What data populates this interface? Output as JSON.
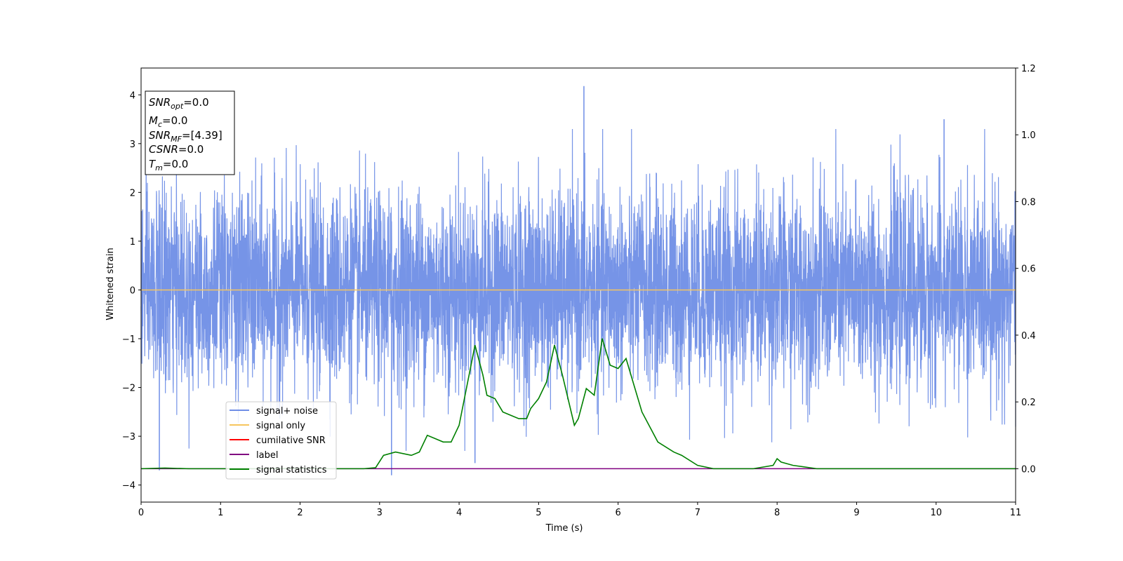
{
  "chart_data": {
    "type": "line",
    "xlabel": "Time (s)",
    "ylabel": "Whitened strain",
    "xlim": [
      0,
      11
    ],
    "ylim_left": [
      -4.35,
      4.55
    ],
    "ylim_right": [
      -0.1,
      1.2
    ],
    "x_ticks": [
      "0",
      "1",
      "2",
      "3",
      "4",
      "5",
      "6",
      "7",
      "8",
      "9",
      "10",
      "11"
    ],
    "y_ticks_left": [
      "−4",
      "−3",
      "−2",
      "−1",
      "0",
      "1",
      "2",
      "3",
      "4"
    ],
    "y_ticks_right": [
      "0.0",
      "0.2",
      "0.4",
      "0.6",
      "0.8",
      "1.0",
      "1.2"
    ],
    "legend_position": "lower-left",
    "info_box": {
      "snr_opt": {
        "main": "SNR",
        "sub": "opt",
        "value": "=0.0"
      },
      "mc": {
        "main": "M",
        "sub": "c",
        "value": "=0.0"
      },
      "snr_mf": {
        "main": "SNR",
        "sub": "MF",
        "value": "=[4.39]"
      },
      "csnr": {
        "main": "CSNR",
        "value": "=0.0"
      },
      "tm": {
        "main": "T",
        "sub": "m",
        "value": "=0.0"
      }
    },
    "series": [
      {
        "name": "signal+ noise",
        "color": "#6f8ee6",
        "axis": "left",
        "description_noise": "whitened gaussian noise, approx. range -3.8 to 4.2",
        "peaks": [
          {
            "x": 0.23,
            "y": -3.7
          },
          {
            "x": 5.57,
            "y": 4.18
          },
          {
            "x": 3.15,
            "y": -3.8
          },
          {
            "x": 10.1,
            "y": 3.5
          },
          {
            "x": 4.2,
            "y": -3.55
          }
        ]
      },
      {
        "name": "signal only",
        "color": "#f6c55e",
        "axis": "left",
        "x": [
          0,
          11
        ],
        "y": [
          0,
          0
        ]
      },
      {
        "name": "cumilative SNR",
        "color": "#ff0000",
        "axis": "right",
        "x": [],
        "y": []
      },
      {
        "name": "label",
        "color": "#800080",
        "axis": "right",
        "x": [
          0,
          11
        ],
        "y": [
          0,
          0
        ]
      },
      {
        "name": "signal statistics",
        "color": "#008000",
        "axis": "right",
        "x": [
          0,
          0.3,
          0.6,
          1.0,
          1.5,
          2.0,
          2.4,
          2.6,
          2.8,
          2.95,
          3.05,
          3.2,
          3.4,
          3.5,
          3.6,
          3.7,
          3.8,
          3.85,
          3.9,
          4.0,
          4.1,
          4.2,
          4.3,
          4.35,
          4.45,
          4.55,
          4.65,
          4.75,
          4.85,
          4.9,
          5.0,
          5.1,
          5.2,
          5.3,
          5.45,
          5.5,
          5.6,
          5.7,
          5.8,
          5.9,
          6.0,
          6.1,
          6.2,
          6.3,
          6.5,
          6.7,
          6.8,
          7.0,
          7.2,
          7.4,
          7.7,
          7.95,
          8.0,
          8.05,
          8.2,
          8.5,
          9.0,
          9.5,
          10.0,
          10.5,
          11.0
        ],
        "y": [
          0.0,
          0.002,
          0.0,
          0.0,
          0.0,
          0.001,
          0.0,
          0.0,
          0.0,
          0.003,
          0.04,
          0.05,
          0.04,
          0.05,
          0.1,
          0.09,
          0.08,
          0.08,
          0.08,
          0.13,
          0.25,
          0.37,
          0.28,
          0.22,
          0.21,
          0.17,
          0.16,
          0.15,
          0.15,
          0.18,
          0.21,
          0.26,
          0.37,
          0.28,
          0.13,
          0.15,
          0.24,
          0.22,
          0.39,
          0.31,
          0.3,
          0.33,
          0.25,
          0.17,
          0.08,
          0.05,
          0.04,
          0.01,
          0.0,
          0.0,
          0.0,
          0.01,
          0.03,
          0.02,
          0.01,
          0.0,
          0.0,
          0.0,
          0.0,
          0.0,
          0.0
        ]
      }
    ]
  }
}
